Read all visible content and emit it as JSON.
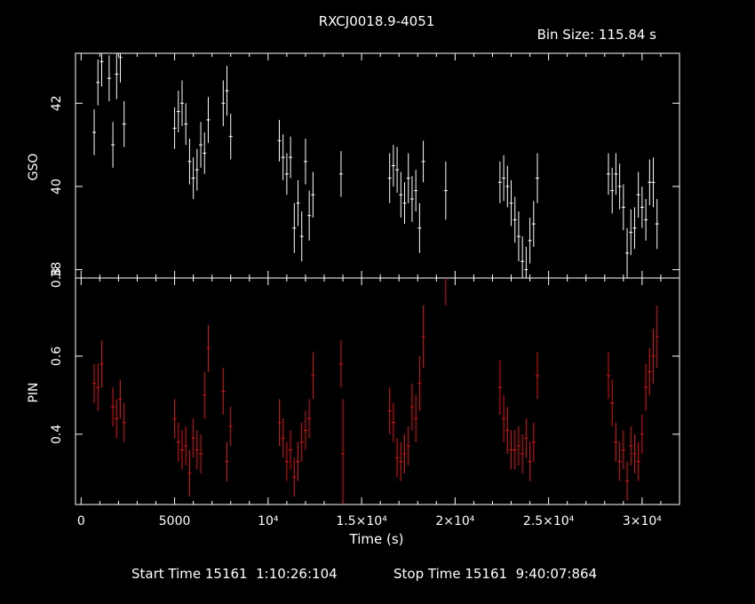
{
  "header": {
    "title": "RXCJ0018.9-4051",
    "bin_size": "Bin Size: 115.84 s"
  },
  "footer": {
    "start_time": "Start Time 15161  1:10:26:104",
    "stop_time": "Stop Time 15161  9:40:07:864"
  },
  "colors": {
    "background": "#000000",
    "axes": "#ffffff",
    "gso_series": "#ffffff",
    "pin_series": "#e01010"
  },
  "chart_data": [
    {
      "type": "scatter",
      "ylabel": "GSO",
      "xlabel": "",
      "xlim": [
        -300,
        32000
      ],
      "ylim": [
        37.8,
        43.2
      ],
      "yticks": [
        {
          "v": 38,
          "label": "38"
        },
        {
          "v": 40,
          "label": "40"
        },
        {
          "v": 42,
          "label": "42"
        }
      ],
      "series": [
        {
          "x": [
            700,
            900,
            1100,
            1500,
            1700,
            1900,
            2100,
            2300,
            5000,
            5200,
            5400,
            5600,
            5800,
            6000,
            6200,
            6400,
            6600,
            6800,
            7600,
            7800,
            8000,
            10600,
            10800,
            11000,
            11200,
            11400,
            11600,
            11800,
            12000,
            12200,
            12400,
            13900,
            16500,
            16700,
            16900,
            17100,
            17300,
            17500,
            17700,
            17900,
            18100,
            18300,
            19500,
            22400,
            22600,
            22800,
            23000,
            23200,
            23400,
            23600,
            23800,
            24000,
            24200,
            24400,
            28200,
            28400,
            28600,
            28800,
            29000,
            29200,
            29400,
            29600,
            29800,
            30000,
            30200,
            30400,
            30600,
            30800
          ],
          "y": [
            41.3,
            42.5,
            43.0,
            42.6,
            41.0,
            42.7,
            43.1,
            41.5,
            41.4,
            41.8,
            42.0,
            41.5,
            40.6,
            40.2,
            40.4,
            41.0,
            40.8,
            41.6,
            42.0,
            42.3,
            41.2,
            41.1,
            40.7,
            40.3,
            40.7,
            39.0,
            39.6,
            38.8,
            40.6,
            39.3,
            39.8,
            40.3,
            40.2,
            40.5,
            40.4,
            39.8,
            39.6,
            40.2,
            39.7,
            39.9,
            39.0,
            40.6,
            39.9,
            40.1,
            40.2,
            40.0,
            39.6,
            39.2,
            38.8,
            38.2,
            38.0,
            38.7,
            39.1,
            40.2,
            40.3,
            39.9,
            40.3,
            40.0,
            39.5,
            38.4,
            38.9,
            39.0,
            39.8,
            39.5,
            39.2,
            40.1,
            40.1,
            39.1
          ],
          "err": [
            0.55,
            0.55,
            0.6,
            0.55,
            0.55,
            0.6,
            0.6,
            0.55,
            0.5,
            0.5,
            0.55,
            0.5,
            0.55,
            0.5,
            0.5,
            0.55,
            0.5,
            0.55,
            0.55,
            0.6,
            0.55,
            0.5,
            0.55,
            0.5,
            0.5,
            0.6,
            0.55,
            0.6,
            0.55,
            0.6,
            0.55,
            0.55,
            0.6,
            0.5,
            0.55,
            0.55,
            0.5,
            0.6,
            0.55,
            0.5,
            0.6,
            0.5,
            0.7,
            0.5,
            0.55,
            0.5,
            0.55,
            0.55,
            0.6,
            0.6,
            0.55,
            0.55,
            0.55,
            0.6,
            0.5,
            0.55,
            0.5,
            0.55,
            0.55,
            0.6,
            0.55,
            0.5,
            0.55,
            0.5,
            0.5,
            0.55,
            0.6,
            0.6
          ]
        }
      ]
    },
    {
      "type": "scatter",
      "ylabel": "PIN",
      "xlabel": "Time (s)",
      "xlim": [
        -300,
        32000
      ],
      "ylim": [
        0.22,
        0.8
      ],
      "xticks": [
        {
          "v": 0,
          "label": "0"
        },
        {
          "v": 5000,
          "label": "5000"
        },
        {
          "v": 10000,
          "label": "10⁴"
        },
        {
          "v": 15000,
          "label": "1.5×10⁴"
        },
        {
          "v": 20000,
          "label": "2×10⁴"
        },
        {
          "v": 25000,
          "label": "2.5×10⁴"
        },
        {
          "v": 30000,
          "label": "3×10⁴"
        }
      ],
      "yticks": [
        {
          "v": 0.4,
          "label": "0.4"
        },
        {
          "v": 0.6,
          "label": "0.6"
        },
        {
          "v": 0.8,
          "label": "0.8"
        }
      ],
      "series": [
        {
          "x": [
            700,
            900,
            1100,
            1700,
            1900,
            2100,
            2300,
            5000,
            5200,
            5400,
            5600,
            5800,
            6000,
            6200,
            6400,
            6600,
            6800,
            7600,
            7800,
            8000,
            10600,
            10800,
            11000,
            11200,
            11400,
            11600,
            11800,
            12000,
            12200,
            12400,
            13900,
            14000,
            16500,
            16700,
            16900,
            17100,
            17300,
            17500,
            17700,
            17900,
            18100,
            18300,
            19500,
            22400,
            22600,
            22800,
            23000,
            23200,
            23400,
            23600,
            23800,
            24000,
            24200,
            24400,
            28200,
            28400,
            28600,
            28800,
            29000,
            29200,
            29400,
            29600,
            29800,
            30000,
            30200,
            30400,
            30600,
            30800
          ],
          "y": [
            0.53,
            0.52,
            0.58,
            0.47,
            0.44,
            0.49,
            0.43,
            0.44,
            0.38,
            0.36,
            0.37,
            0.3,
            0.39,
            0.36,
            0.35,
            0.5,
            0.62,
            0.51,
            0.33,
            0.42,
            0.43,
            0.39,
            0.33,
            0.36,
            0.29,
            0.33,
            0.38,
            0.41,
            0.44,
            0.55,
            0.58,
            0.35,
            0.46,
            0.43,
            0.34,
            0.33,
            0.35,
            0.37,
            0.47,
            0.44,
            0.53,
            0.65,
            0.83,
            0.52,
            0.44,
            0.41,
            0.36,
            0.36,
            0.37,
            0.35,
            0.39,
            0.33,
            0.38,
            0.55,
            0.55,
            0.48,
            0.38,
            0.33,
            0.36,
            0.28,
            0.37,
            0.35,
            0.33,
            0.4,
            0.52,
            0.56,
            0.6,
            0.65
          ],
          "err": [
            0.05,
            0.06,
            0.06,
            0.05,
            0.05,
            0.05,
            0.05,
            0.05,
            0.05,
            0.05,
            0.05,
            0.06,
            0.05,
            0.05,
            0.05,
            0.06,
            0.06,
            0.06,
            0.05,
            0.05,
            0.06,
            0.05,
            0.05,
            0.05,
            0.05,
            0.05,
            0.05,
            0.05,
            0.05,
            0.06,
            0.06,
            0.14,
            0.06,
            0.05,
            0.05,
            0.05,
            0.05,
            0.05,
            0.06,
            0.06,
            0.07,
            0.08,
            0.1,
            0.07,
            0.06,
            0.06,
            0.05,
            0.05,
            0.05,
            0.05,
            0.05,
            0.05,
            0.05,
            0.06,
            0.06,
            0.06,
            0.05,
            0.05,
            0.05,
            0.05,
            0.05,
            0.05,
            0.05,
            0.05,
            0.06,
            0.06,
            0.07,
            0.08
          ]
        }
      ]
    }
  ]
}
